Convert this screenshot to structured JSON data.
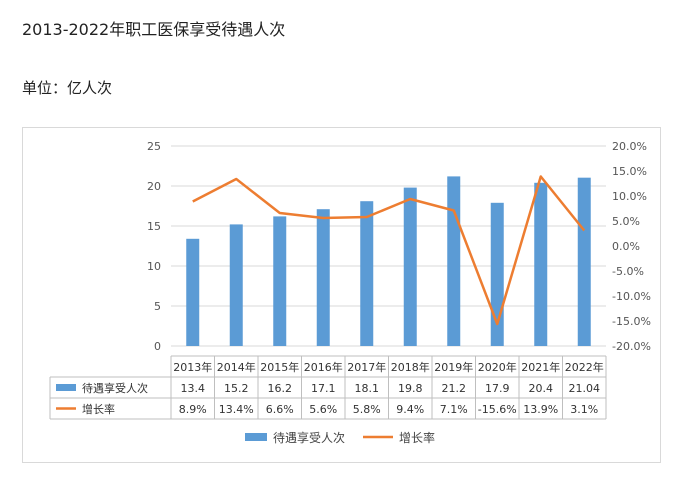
{
  "page": {
    "title": "2013-2022年职工医保享受待遇人次",
    "unit": "单位：亿人次"
  },
  "colors": {
    "bar": "#5b9bd5",
    "line": "#ed7d31",
    "grid": "#d9d9d9"
  },
  "chart_data": {
    "type": "bar",
    "categories": [
      "2013年",
      "2014年",
      "2015年",
      "2016年",
      "2017年",
      "2018年",
      "2019年",
      "2020年",
      "2021年",
      "2022年"
    ],
    "series": [
      {
        "name": "待遇享受人次",
        "type": "bar",
        "axis": "left",
        "values": [
          13.4,
          15.2,
          16.2,
          17.1,
          18.1,
          19.8,
          21.2,
          17.9,
          20.4,
          21.04
        ],
        "labels": [
          "13.4",
          "15.2",
          "16.2",
          "17.1",
          "18.1",
          "19.8",
          "21.2",
          "17.9",
          "20.4",
          "21.04"
        ]
      },
      {
        "name": "增长率",
        "type": "line",
        "axis": "right",
        "values": [
          8.9,
          13.4,
          6.6,
          5.6,
          5.8,
          9.4,
          7.1,
          -15.6,
          13.9,
          3.1
        ],
        "labels": [
          "8.9%",
          "13.4%",
          "6.6%",
          "5.6%",
          "5.8%",
          "9.4%",
          "7.1%",
          "-15.6%",
          "13.9%",
          "3.1%"
        ]
      }
    ],
    "y_left": {
      "range": [
        0,
        25
      ],
      "ticks": [
        "0",
        "5",
        "10",
        "15",
        "20",
        "25"
      ]
    },
    "y_right": {
      "range": [
        -20,
        20
      ],
      "ticks": [
        "-20.0%",
        "-15.0%",
        "-10.0%",
        "-5.0%",
        "0.0%",
        "5.0%",
        "10.0%",
        "15.0%",
        "20.0%"
      ]
    },
    "grid": true,
    "data_table": true,
    "legend_position": "bottom"
  }
}
